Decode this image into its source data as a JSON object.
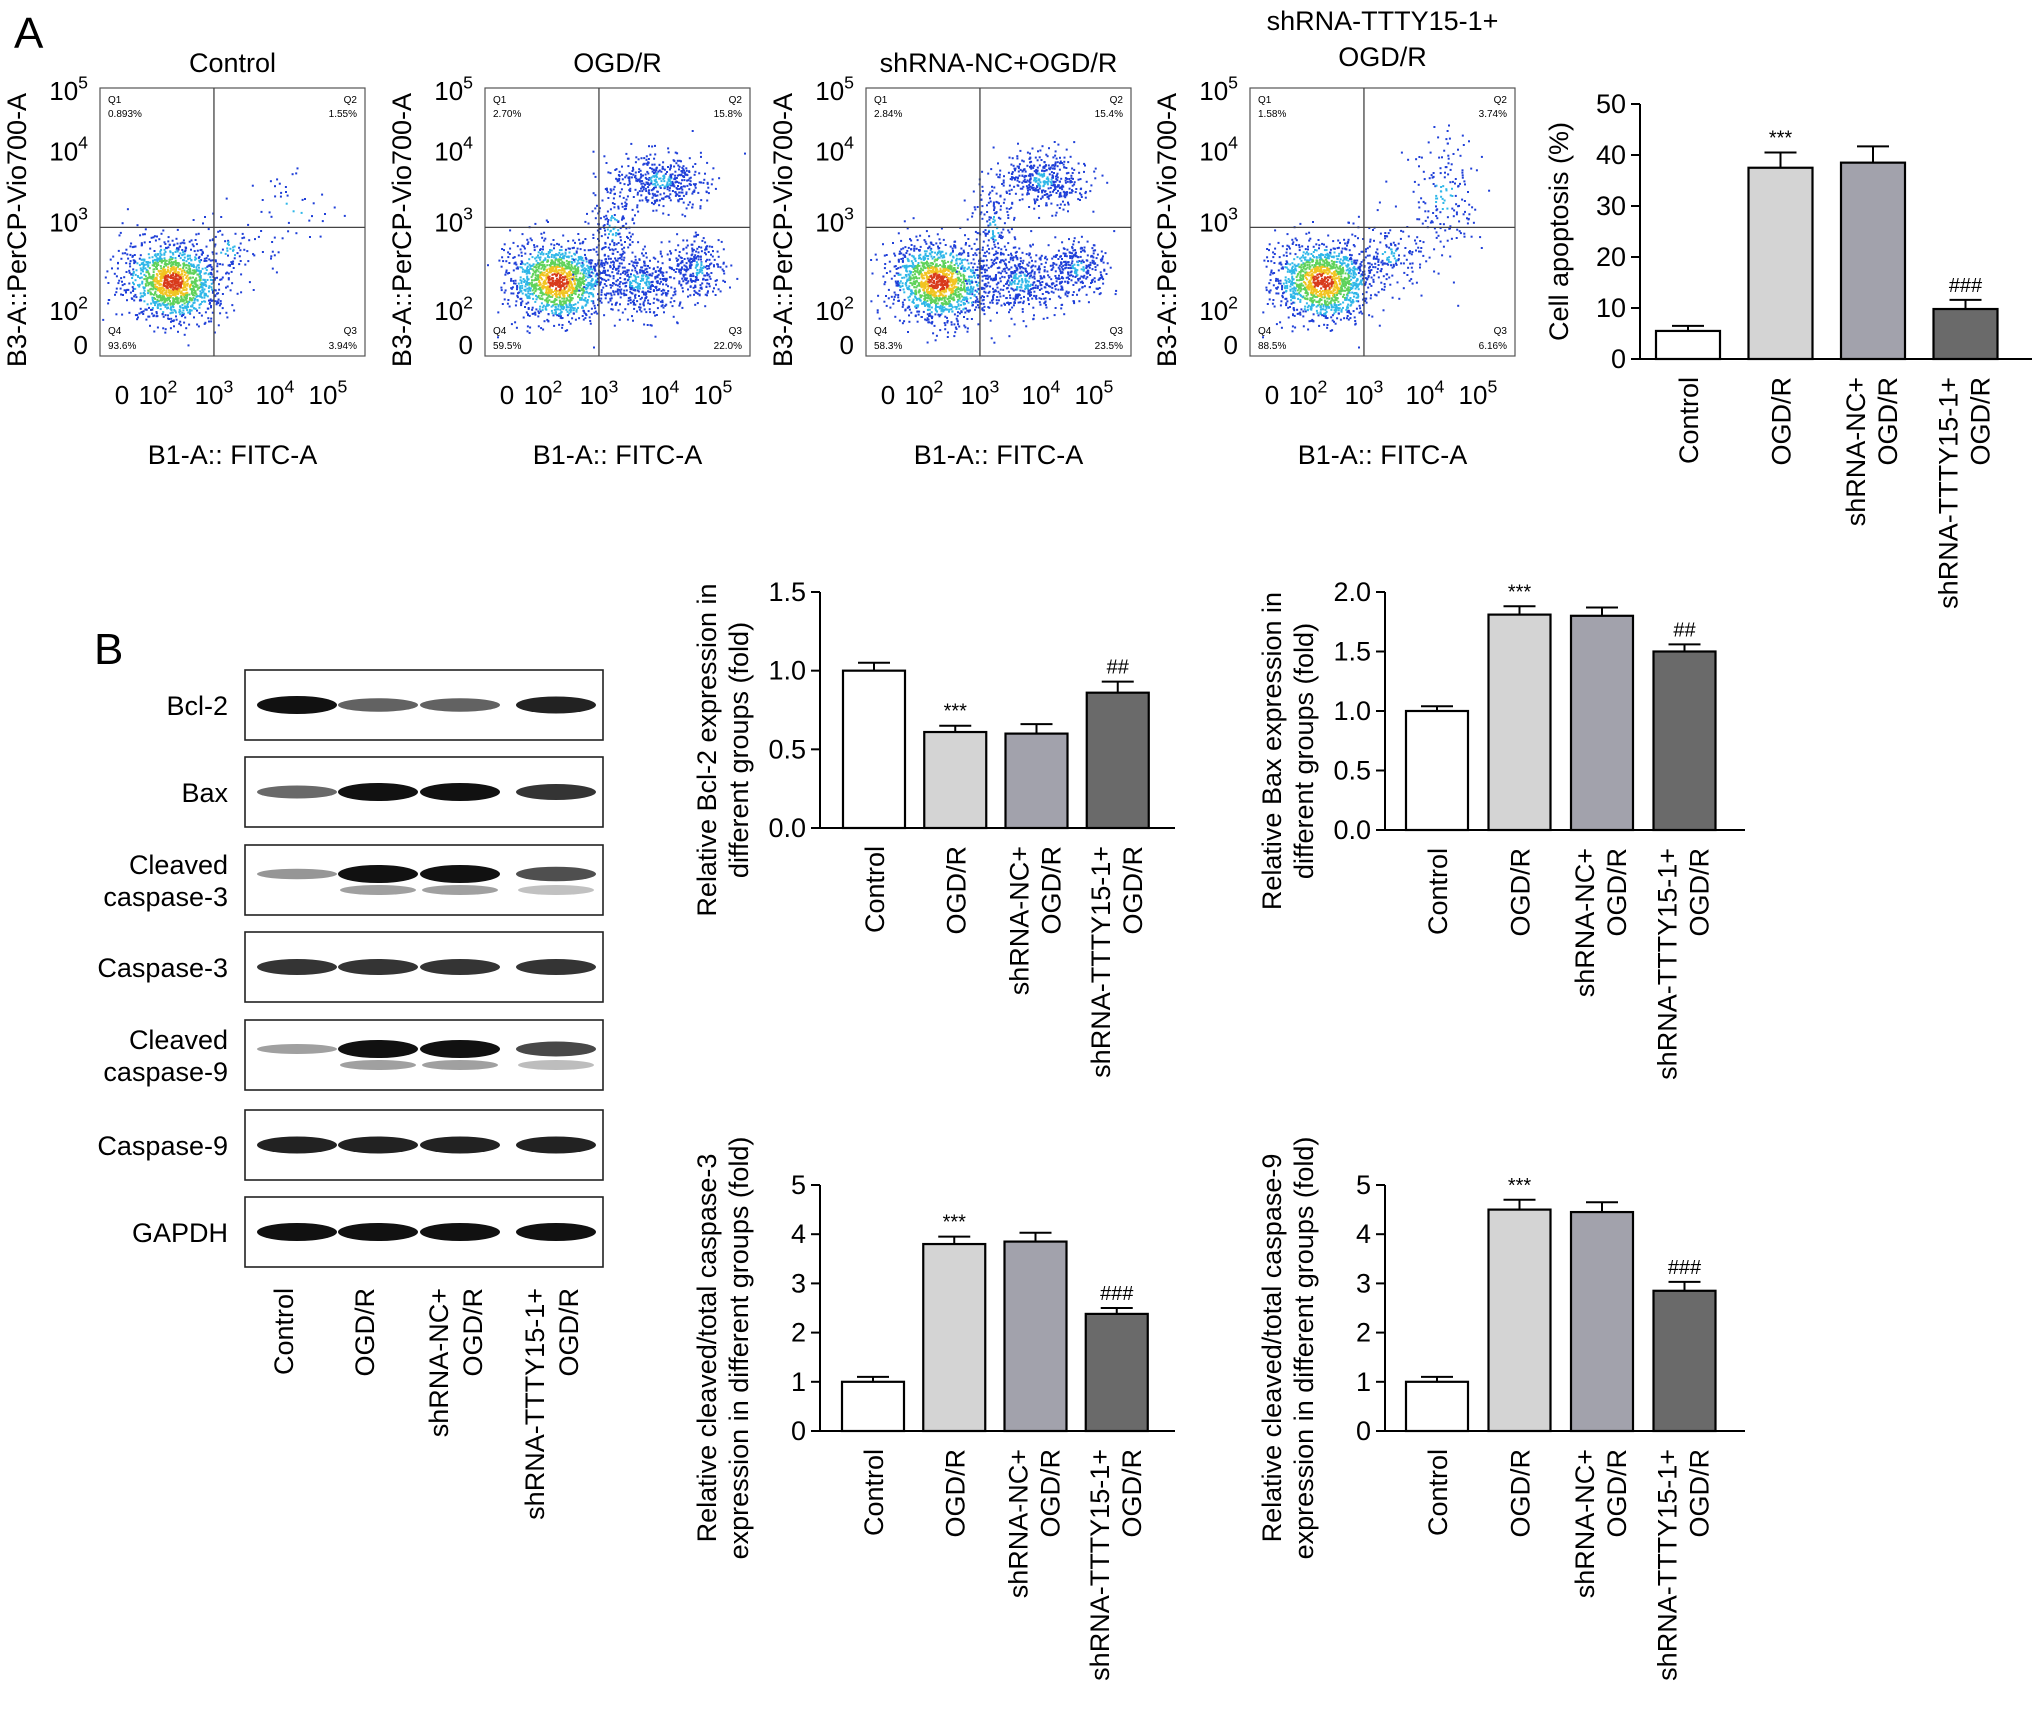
{
  "panels": {
    "a": "A",
    "b": "B"
  },
  "colors": {
    "bar_fills": [
      "#ffffff",
      "#d4d4d4",
      "#a2a2ac",
      "#6a6a6a"
    ],
    "bar_stroke": "#000000",
    "quadrant_line": "#444444",
    "dot_gradient": [
      "#1f3fd8",
      "#2fb7e8",
      "#5fd25a",
      "#f2c421",
      "#d83b1c"
    ]
  },
  "flow": {
    "xlabel": "B1-A:: FITC-A",
    "ylabel": "B3-A::PerCP-Vio700-A",
    "xticks": [
      "0",
      "10^2",
      "10^3",
      "10^4",
      "10^5"
    ],
    "yticks": [
      "0",
      "10^2",
      "10^3",
      "10^4",
      "10^5"
    ],
    "plots": [
      {
        "title": [
          "Control"
        ],
        "q1": [
          "Q1",
          "0.893%"
        ],
        "q2": [
          "Q2",
          "1.55%"
        ],
        "q3": [
          "Q3",
          "3.94%"
        ],
        "q4": [
          "Q4",
          "93.6%"
        ],
        "pattern": "control"
      },
      {
        "title": [
          "OGD/R"
        ],
        "q1": [
          "Q1",
          "2.70%"
        ],
        "q2": [
          "Q2",
          "15.8%"
        ],
        "q3": [
          "Q3",
          "22.0%"
        ],
        "q4": [
          "Q4",
          "59.5%"
        ],
        "pattern": "ogd"
      },
      {
        "title": [
          "shRNA-NC+OGD/R"
        ],
        "q1": [
          "Q1",
          "2.84%"
        ],
        "q2": [
          "Q2",
          "15.4%"
        ],
        "q3": [
          "Q3",
          "23.5%"
        ],
        "q4": [
          "Q4",
          "58.3%"
        ],
        "pattern": "ogd"
      },
      {
        "title": [
          "shRNA-TTTY15-1+",
          "OGD/R"
        ],
        "q1": [
          "Q1",
          "1.58%"
        ],
        "q2": [
          "Q2",
          "3.74%"
        ],
        "q3": [
          "Q3",
          "6.16%"
        ],
        "q4": [
          "Q4",
          "88.5%"
        ],
        "pattern": "sh"
      }
    ]
  },
  "western": {
    "bands": [
      {
        "label": [
          "Bcl-2"
        ],
        "intensity": [
          1.0,
          0.55,
          0.55,
          0.9
        ],
        "double": false
      },
      {
        "label": [
          "Bax"
        ],
        "intensity": [
          0.5,
          1.0,
          1.0,
          0.8
        ],
        "double": false
      },
      {
        "label": [
          "Cleaved",
          "caspase-3"
        ],
        "intensity": [
          0.25,
          1.0,
          1.0,
          0.65
        ],
        "double": true
      },
      {
        "label": [
          "Caspase-3"
        ],
        "intensity": [
          0.8,
          0.8,
          0.8,
          0.8
        ],
        "double": false
      },
      {
        "label": [
          "Cleaved",
          "caspase-9"
        ],
        "intensity": [
          0.2,
          1.0,
          1.0,
          0.7
        ],
        "double": true
      },
      {
        "label": [
          "Caspase-9"
        ],
        "intensity": [
          0.9,
          0.9,
          0.9,
          0.9
        ],
        "double": false
      },
      {
        "label": [
          "GAPDH"
        ],
        "intensity": [
          1.0,
          1.0,
          1.0,
          1.0
        ],
        "double": false
      }
    ],
    "lanes": [
      [
        "Control"
      ],
      [
        "OGD/R"
      ],
      [
        "shRNA-NC+",
        "OGD/R"
      ],
      [
        "shRNA-TTTY15-1+",
        "OGD/R"
      ]
    ]
  },
  "chart_data": [
    {
      "type": "bar",
      "categories": [
        [
          "Control"
        ],
        [
          "OGD/R"
        ],
        [
          "shRNA-NC+",
          "OGD/R"
        ],
        [
          "shRNA-TTTY15-1+",
          "OGD/R"
        ]
      ],
      "values": [
        5.5,
        37.5,
        38.5,
        9.8
      ],
      "errors": [
        1.0,
        3.0,
        3.2,
        1.8
      ],
      "annotations": [
        "",
        "***",
        "",
        "###"
      ],
      "ylabel": [
        "Cell apoptosis (%)"
      ],
      "ylim": [
        0,
        50
      ],
      "yticks": [
        0,
        10,
        20,
        30,
        40,
        50
      ]
    },
    {
      "type": "bar",
      "categories": [
        [
          "Control"
        ],
        [
          "OGD/R"
        ],
        [
          "shRNA-NC+",
          "OGD/R"
        ],
        [
          "shRNA-TTTY15-1+",
          "OGD/R"
        ]
      ],
      "values": [
        1.0,
        0.61,
        0.6,
        0.86
      ],
      "errors": [
        0.05,
        0.04,
        0.06,
        0.07
      ],
      "annotations": [
        "",
        "***",
        "",
        "##"
      ],
      "ylabel": [
        "Relative Bcl-2 expression in",
        "different groups (fold)"
      ],
      "ylim": [
        0,
        1.5
      ],
      "yticks": [
        0.0,
        0.5,
        1.0,
        1.5
      ]
    },
    {
      "type": "bar",
      "categories": [
        [
          "Control"
        ],
        [
          "OGD/R"
        ],
        [
          "shRNA-NC+",
          "OGD/R"
        ],
        [
          "shRNA-TTTY15-1+",
          "OGD/R"
        ]
      ],
      "values": [
        1.0,
        1.81,
        1.8,
        1.5
      ],
      "errors": [
        0.04,
        0.07,
        0.07,
        0.06
      ],
      "annotations": [
        "",
        "***",
        "",
        "##"
      ],
      "ylabel": [
        "Relative Bax expression in",
        "different groups (fold)"
      ],
      "ylim": [
        0,
        2.0
      ],
      "yticks": [
        0.0,
        0.5,
        1.0,
        1.5,
        2.0
      ]
    },
    {
      "type": "bar",
      "categories": [
        [
          "Control"
        ],
        [
          "OGD/R"
        ],
        [
          "shRNA-NC+",
          "OGD/R"
        ],
        [
          "shRNA-TTTY15-1+",
          "OGD/R"
        ]
      ],
      "values": [
        1.0,
        3.8,
        3.85,
        2.38
      ],
      "errors": [
        0.1,
        0.15,
        0.18,
        0.12
      ],
      "annotations": [
        "",
        "***",
        "",
        "###"
      ],
      "ylabel": [
        "Relative cleaved/total caspase-3",
        "expression in different groups (fold)"
      ],
      "ylim": [
        0,
        5
      ],
      "yticks": [
        0,
        1,
        2,
        3,
        4,
        5
      ]
    },
    {
      "type": "bar",
      "categories": [
        [
          "Control"
        ],
        [
          "OGD/R"
        ],
        [
          "shRNA-NC+",
          "OGD/R"
        ],
        [
          "shRNA-TTTY15-1+",
          "OGD/R"
        ]
      ],
      "values": [
        1.0,
        4.5,
        4.45,
        2.85
      ],
      "errors": [
        0.1,
        0.2,
        0.2,
        0.18
      ],
      "annotations": [
        "",
        "***",
        "",
        "###"
      ],
      "ylabel": [
        "Relative cleaved/total caspase-9",
        "expression in different groups (fold)"
      ],
      "ylim": [
        0,
        5
      ],
      "yticks": [
        0,
        1,
        2,
        3,
        4,
        5
      ]
    }
  ]
}
